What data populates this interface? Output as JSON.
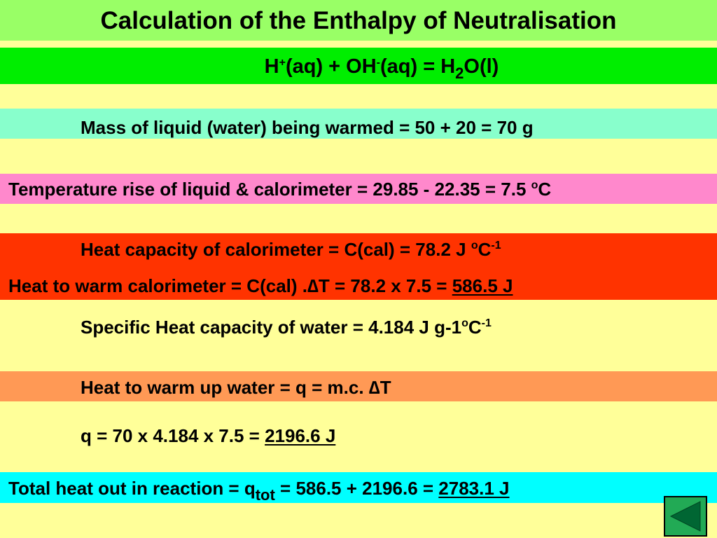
{
  "title": "Calculation of the Enthalpy of Neutralisation",
  "equation": {
    "h": "H",
    "h_sup": "+",
    "part1": "(aq) + OH",
    "oh_sup": "-",
    "part2": "(aq) = H",
    "h2_sub": "2",
    "part3": "O(l)"
  },
  "mass_line": "Mass of liquid (water) being warmed = 50 + 20 = 70 g",
  "temp_line": {
    "text": "Temperature rise of liquid & calorimeter = 29.85 - 22.35 = 7.5 ",
    "deg": "o",
    "unit": "C"
  },
  "heat_capacity_line": {
    "text": "Heat capacity of calorimeter = C(cal) = 78.2 J ",
    "deg": "o",
    "unit": "C",
    "exp": "-1"
  },
  "heat_warm_cal_line": {
    "text": "Heat to warm calorimeter = C(cal) .",
    "delta": "∆",
    "text2": "T = 78.2 x 7.5 =  ",
    "result": "586.5 J"
  },
  "specific_heat_line": {
    "text": "Specific Heat capacity of water = 4.184 J g-1",
    "deg": "o",
    "unit": "C",
    "exp": "-1"
  },
  "heat_warm_water_line": {
    "text": "Heat to warm up water = q = m.c. ",
    "delta": "∆",
    "text2": "T"
  },
  "q_line": {
    "text": "q = 70 x 4.184 x 7.5 = ",
    "result": "2196.6 J"
  },
  "total_line": {
    "text": "Total heat out in reaction = q",
    "sub": "tot",
    "text2": " = 586.5 + 2196.6 = ",
    "result": "2783.1 J"
  },
  "nav": {
    "back_icon": "triangle-left-icon",
    "button_color": "#22aa55",
    "arrow_color": "#006633"
  }
}
